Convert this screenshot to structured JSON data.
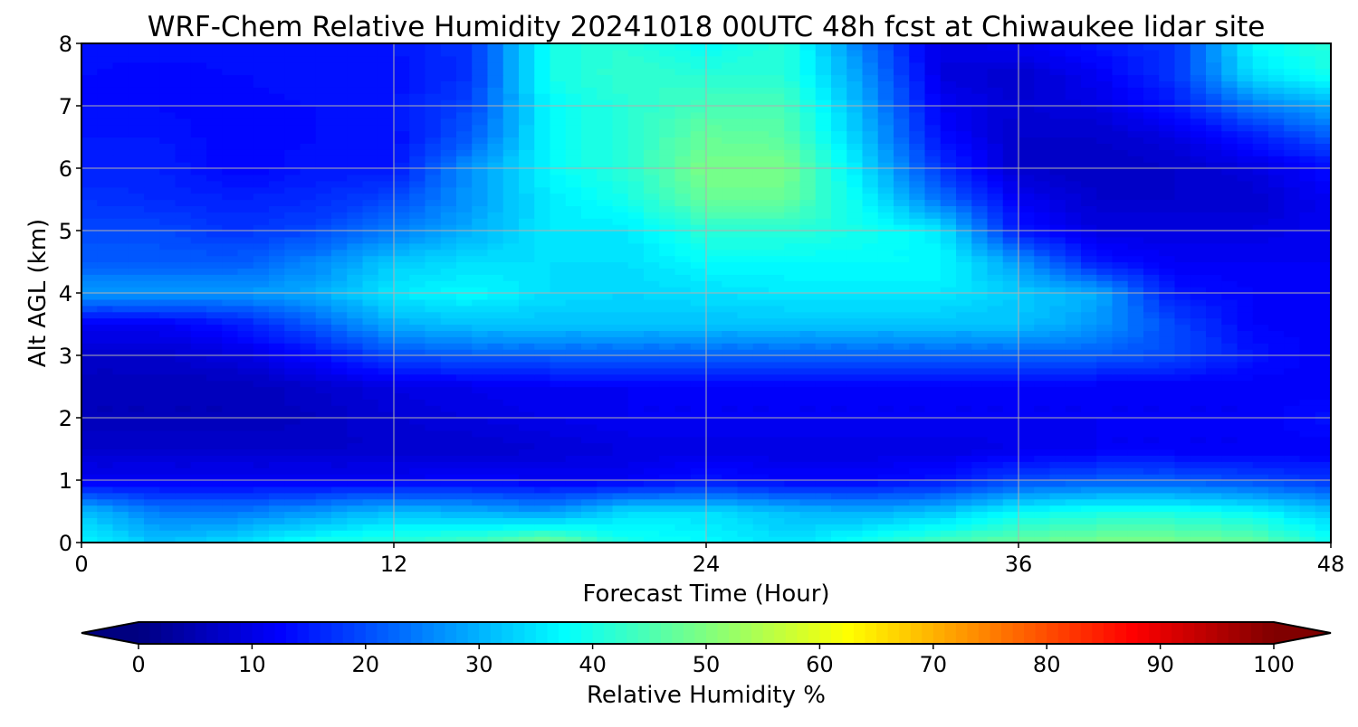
{
  "chart_data": {
    "type": "heatmap",
    "title": "WRF-Chem Relative Humidity 20241018 00UTC 48h fcst at Chiwaukee lidar site",
    "xlabel": "Forecast Time (Hour)",
    "ylabel": "Alt AGL (km)",
    "xlim": [
      0,
      48
    ],
    "ylim": [
      0,
      8
    ],
    "xticks": [
      "0",
      "12",
      "24",
      "36",
      "48"
    ],
    "yticks": [
      "0",
      "1",
      "2",
      "3",
      "4",
      "5",
      "6",
      "7",
      "8"
    ],
    "grid": true,
    "colormap": "jet",
    "x": [
      0,
      3,
      6,
      9,
      12,
      15,
      18,
      21,
      24,
      27,
      30,
      33,
      36,
      39,
      42,
      45,
      48
    ],
    "y": [
      0,
      0.5,
      1,
      1.5,
      2,
      2.5,
      3,
      3.5,
      4,
      4.5,
      5,
      5.5,
      6,
      6.5,
      7,
      7.5,
      8
    ],
    "z": [
      [
        38,
        32,
        35,
        40,
        42,
        45,
        50,
        40,
        38,
        35,
        40,
        45,
        48,
        50,
        50,
        48,
        40
      ],
      [
        32,
        25,
        25,
        28,
        32,
        30,
        28,
        35,
        35,
        32,
        30,
        32,
        38,
        40,
        40,
        38,
        32
      ],
      [
        12,
        12,
        12,
        12,
        12,
        13,
        12,
        12,
        15,
        13,
        13,
        15,
        20,
        22,
        22,
        20,
        18
      ],
      [
        8,
        8,
        8,
        8,
        8,
        8,
        9,
        10,
        10,
        10,
        10,
        10,
        11,
        12,
        12,
        12,
        12
      ],
      [
        6,
        6,
        6,
        7,
        9,
        10,
        11,
        12,
        12,
        12,
        12,
        12,
        12,
        12,
        12,
        12,
        15
      ],
      [
        6,
        6,
        6,
        8,
        10,
        11,
        12,
        12,
        12,
        12,
        12,
        12,
        12,
        12,
        12,
        12,
        12
      ],
      [
        8,
        8,
        10,
        14,
        20,
        22,
        22,
        22,
        22,
        22,
        22,
        22,
        22,
        22,
        20,
        15,
        12
      ],
      [
        12,
        12,
        15,
        22,
        30,
        32,
        32,
        32,
        32,
        32,
        32,
        32,
        32,
        28,
        20,
        13,
        12
      ],
      [
        28,
        28,
        28,
        30,
        36,
        38,
        35,
        34,
        35,
        36,
        36,
        36,
        33,
        30,
        15,
        13,
        13
      ],
      [
        22,
        22,
        22,
        26,
        33,
        35,
        35,
        35,
        38,
        38,
        38,
        38,
        28,
        15,
        12,
        12,
        12
      ],
      [
        20,
        20,
        18,
        20,
        25,
        30,
        36,
        36,
        42,
        42,
        40,
        36,
        15,
        10,
        10,
        10,
        12
      ],
      [
        18,
        17,
        16,
        17,
        20,
        28,
        36,
        40,
        48,
        48,
        38,
        24,
        12,
        8,
        8,
        8,
        12
      ],
      [
        16,
        16,
        13,
        15,
        15,
        28,
        38,
        42,
        50,
        50,
        35,
        18,
        8,
        7,
        8,
        10,
        14
      ],
      [
        15,
        15,
        13,
        14,
        14,
        22,
        38,
        42,
        48,
        47,
        32,
        14,
        8,
        8,
        10,
        15,
        22
      ],
      [
        14,
        14,
        13,
        14,
        15,
        20,
        38,
        42,
        45,
        45,
        30,
        12,
        9,
        10,
        15,
        25,
        30
      ],
      [
        14,
        13,
        14,
        15,
        14,
        18,
        40,
        43,
        42,
        42,
        28,
        10,
        8,
        12,
        18,
        35,
        40
      ],
      [
        15,
        15,
        15,
        15,
        15,
        18,
        40,
        42,
        38,
        42,
        25,
        10,
        12,
        15,
        18,
        38,
        42
      ]
    ],
    "colorbar": {
      "label": "Relative Humidity %",
      "range": [
        0,
        100
      ],
      "extend": "both",
      "ticks": [
        "0",
        "10",
        "20",
        "30",
        "40",
        "50",
        "60",
        "70",
        "80",
        "90",
        "100"
      ]
    }
  }
}
